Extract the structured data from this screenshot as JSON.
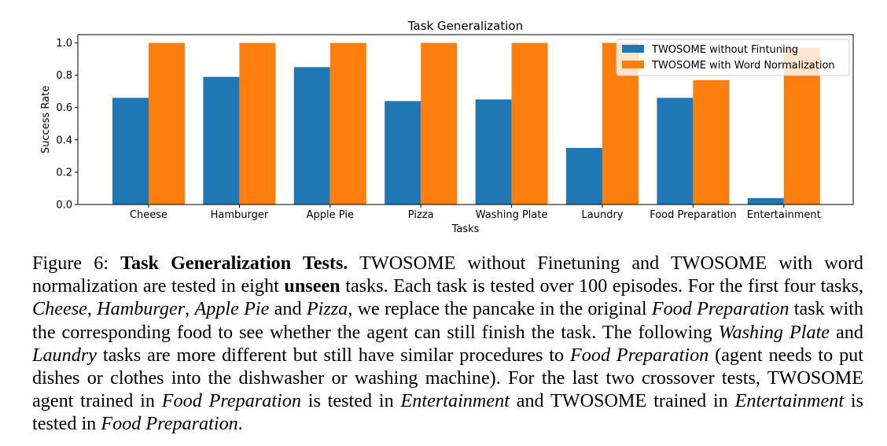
{
  "chart_data": {
    "type": "bar",
    "title": "Task Generalization",
    "xlabel": "Tasks",
    "ylabel": "Success Rate",
    "categories": [
      "Cheese",
      "Hamburger",
      "Apple Pie",
      "Pizza",
      "Washing Plate",
      "Laundry",
      "Food Preparation",
      "Entertainment"
    ],
    "series": [
      {
        "name": "TWOSOME without Fintuning",
        "color": "#1f77b4",
        "values": [
          0.66,
          0.79,
          0.85,
          0.64,
          0.65,
          0.35,
          0.66,
          0.04
        ]
      },
      {
        "name": "TWOSOME with Word Normalization",
        "color": "#ff7f0e",
        "values": [
          1.0,
          1.0,
          1.0,
          1.0,
          1.0,
          1.0,
          0.77,
          0.97
        ]
      }
    ],
    "ylim": [
      0,
      1.05
    ],
    "yticks": [
      "0.0",
      "0.2",
      "0.4",
      "0.6",
      "0.8",
      "1.0"
    ],
    "grid": false,
    "legend_position": "top-right"
  },
  "caption": {
    "label": "Figure 6: ",
    "title": "Task Generalization Tests.",
    "t1": " TWOSOME without Finetuning and TWOSOME with word normalization are tested in eight ",
    "unseen": "unseen",
    "t2": " tasks. Each task is tested over 100 episodes. For the first four tasks, ",
    "cheese": "Cheese",
    "c1": ", ",
    "hamburger": "Hamburger",
    "c2": ", ",
    "applepie": "Apple Pie",
    "and1": " and ",
    "pizza": "Pizza",
    "t3": ", we replace the pancake in the original ",
    "foodprep1": "Food Preparation",
    "t4": " task with the corresponding food to see whether the agent can still finish the task. The following ",
    "washing": "Washing Plate",
    "and2": " and ",
    "laundry": "Laundry",
    "t5": " tasks are more different but still have similar procedures to ",
    "foodprep2": "Food Preparation",
    "t6": " (agent needs to put dishes or clothes into the dishwasher or washing machine). For the last two crossover tests, TWOSOME agent trained in ",
    "foodprep3": "Food Preparation",
    "t7": " is tested in ",
    "entertain1": "Entertainment",
    "t8": " and TWOSOME trained in ",
    "entertain2": "Entertainment",
    "t9": " is tested in ",
    "foodprep4": "Food Preparation",
    "t10": "."
  }
}
